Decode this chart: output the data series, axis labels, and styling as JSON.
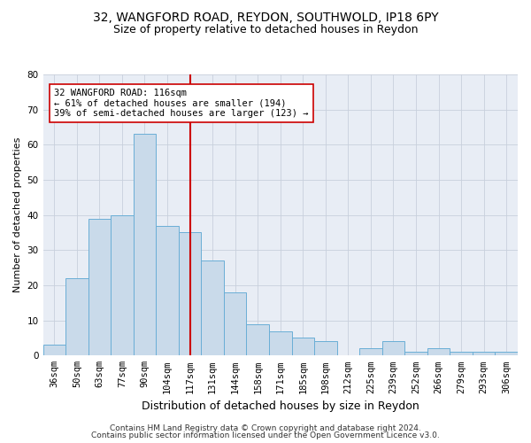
{
  "title_line1": "32, WANGFORD ROAD, REYDON, SOUTHWOLD, IP18 6PY",
  "title_line2": "Size of property relative to detached houses in Reydon",
  "xlabel": "Distribution of detached houses by size in Reydon",
  "ylabel": "Number of detached properties",
  "categories": [
    "36sqm",
    "50sqm",
    "63sqm",
    "77sqm",
    "90sqm",
    "104sqm",
    "117sqm",
    "131sqm",
    "144sqm",
    "158sqm",
    "171sqm",
    "185sqm",
    "198sqm",
    "212sqm",
    "225sqm",
    "239sqm",
    "252sqm",
    "266sqm",
    "279sqm",
    "293sqm",
    "306sqm"
  ],
  "values": [
    3,
    22,
    39,
    40,
    63,
    37,
    35,
    27,
    18,
    9,
    7,
    5,
    4,
    0,
    2,
    4,
    1,
    2,
    1,
    1,
    1
  ],
  "bar_color": "#c9daea",
  "bar_edge_color": "#6aaed6",
  "vline_x_index": 6.0,
  "vline_color": "#cc0000",
  "annotation_text": "32 WANGFORD ROAD: 116sqm\n← 61% of detached houses are smaller (194)\n39% of semi-detached houses are larger (123) →",
  "annotation_box_color": "#ffffff",
  "annotation_box_edge": "#cc0000",
  "ylim": [
    0,
    80
  ],
  "yticks": [
    0,
    10,
    20,
    30,
    40,
    50,
    60,
    70,
    80
  ],
  "grid_color": "#c8d0dc",
  "background_color": "#e8edf5",
  "footnote1": "Contains HM Land Registry data © Crown copyright and database right 2024.",
  "footnote2": "Contains public sector information licensed under the Open Government Licence v3.0.",
  "title_fontsize": 10,
  "subtitle_fontsize": 9,
  "xlabel_fontsize": 9,
  "ylabel_fontsize": 8,
  "tick_fontsize": 7.5,
  "footnote_fontsize": 6.5,
  "ann_fontsize": 7.5
}
